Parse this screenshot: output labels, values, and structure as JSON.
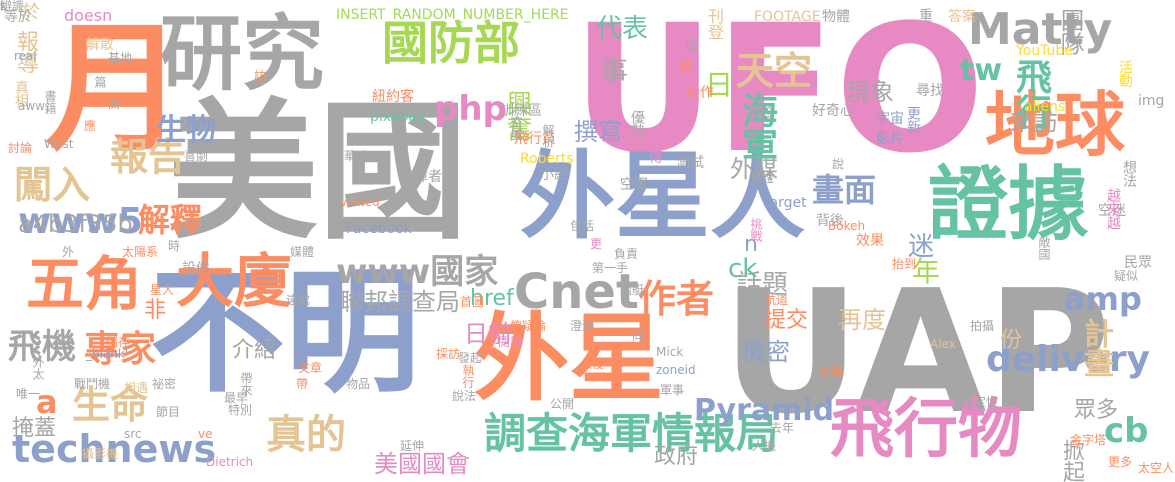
{
  "palette": {
    "gray": "#a6a6a6",
    "pink": "#e78ac3",
    "blue": "#8da0cb",
    "orange": "#fc8d62",
    "green": "#66c2a5",
    "lime": "#a6d854",
    "tan": "#e5c494",
    "yellow": "#ffd92f"
  },
  "words": [
    {
      "text": "UFO",
      "color": "pink"
    },
    {
      "text": "美國",
      "color": "gray"
    },
    {
      "text": "UAP",
      "color": "gray"
    },
    {
      "text": "外星人",
      "color": "blue"
    },
    {
      "text": "不明",
      "color": "blue"
    },
    {
      "text": "月",
      "color": "orange"
    },
    {
      "text": "研究",
      "color": "gray"
    },
    {
      "text": "證據",
      "color": "green"
    },
    {
      "text": "外星",
      "color": "orange"
    },
    {
      "text": "地球",
      "color": "orange"
    },
    {
      "text": "飛行物",
      "color": "pink"
    },
    {
      "text": "大廈",
      "color": "orange"
    },
    {
      "text": "五角",
      "color": "orange"
    },
    {
      "text": "國防部",
      "color": "lime"
    },
    {
      "text": "Cnet",
      "color": "gray"
    },
    {
      "text": "闖入",
      "color": "tan"
    },
    {
      "text": "報告",
      "color": "tan"
    },
    {
      "text": "調查海軍情報局",
      "color": "green"
    },
    {
      "text": "technews",
      "color": "blue"
    },
    {
      "text": "專家",
      "color": "orange"
    },
    {
      "text": "生命",
      "color": "tan"
    },
    {
      "text": "真的",
      "color": "tan"
    },
    {
      "text": "www國家",
      "color": "gray"
    },
    {
      "text": "Matty",
      "color": "gray"
    },
    {
      "text": "php",
      "color": "pink"
    },
    {
      "text": "天空",
      "color": "tan"
    },
    {
      "text": "飛行",
      "color": "green"
    },
    {
      "text": "海軍",
      "color": "green"
    },
    {
      "text": "delivery",
      "color": "blue"
    },
    {
      "text": "作者",
      "color": "orange"
    },
    {
      "text": "www5",
      "color": "blue"
    },
    {
      "text": "飛機",
      "color": "gray"
    },
    {
      "text": "解釋",
      "color": "orange"
    },
    {
      "text": "生物",
      "color": "blue"
    },
    {
      "text": "畫面",
      "color": "blue"
    },
    {
      "text": "amp",
      "color": "blue"
    },
    {
      "text": "計畫",
      "color": "tan"
    },
    {
      "text": "Pyramid",
      "color": "blue"
    },
    {
      "text": "cb",
      "color": "green"
    },
    {
      "text": "代表",
      "color": "green"
    },
    {
      "text": "事",
      "color": "gray"
    },
    {
      "text": "日",
      "color": "lime"
    },
    {
      "text": "tw",
      "color": "green"
    },
    {
      "text": "興奮",
      "color": "lime"
    },
    {
      "text": "撰寫",
      "color": "blue"
    },
    {
      "text": "聯邦調查局",
      "color": "gray"
    },
    {
      "text": "a4b3f35b",
      "color": "gray"
    },
    {
      "text": "外媒",
      "color": "gray"
    },
    {
      "text": "年",
      "color": "lime"
    },
    {
      "text": "話題",
      "color": "gray"
    },
    {
      "text": "現象",
      "color": "gray"
    },
    {
      "text": "來訪",
      "color": "gray"
    },
    {
      "text": "團隊",
      "color": "gray"
    },
    {
      "text": "迷",
      "color": "blue"
    },
    {
      "text": "再度",
      "color": "tan"
    },
    {
      "text": "日前",
      "color": "pink"
    },
    {
      "text": "提交",
      "color": "orange"
    },
    {
      "text": "機密",
      "color": "blue"
    },
    {
      "text": "美國國會",
      "color": "pink"
    },
    {
      "text": "政府",
      "color": "gray"
    },
    {
      "text": "掀起",
      "color": "gray"
    },
    {
      "text": "眾多",
      "color": "gray"
    },
    {
      "text": "份",
      "color": "tan"
    },
    {
      "text": "掩蓋",
      "color": "gray"
    },
    {
      "text": "介紹",
      "color": "gray"
    },
    {
      "text": "a",
      "color": "orange"
    },
    {
      "text": "n",
      "color": "blue"
    },
    {
      "text": "ck",
      "color": "green"
    },
    {
      "text": "href",
      "color": "green"
    },
    {
      "text": "非",
      "color": "orange"
    },
    {
      "text": "報導",
      "color": "tan"
    },
    {
      "text": "於",
      "color": "tan"
    },
    {
      "text": "doesn",
      "color": "pink"
    },
    {
      "text": "INSERT_RANDOM_NUMBER_HERE",
      "color": "lime"
    },
    {
      "text": "刊登",
      "color": "tan"
    },
    {
      "text": "FOOTAGE",
      "color": "tan"
    },
    {
      "text": "物體",
      "color": "gray"
    },
    {
      "text": "重",
      "color": "gray"
    },
    {
      "text": "答案",
      "color": "tan"
    },
    {
      "text": "等於",
      "color": "gray"
    },
    {
      "text": "真相",
      "color": "tan"
    },
    {
      "text": "解散",
      "color": "tan"
    },
    {
      "text": "紐約客",
      "color": "orange"
    },
    {
      "text": "訓練區",
      "color": "gray"
    },
    {
      "text": "炒作",
      "color": "orange"
    },
    {
      "text": "顆粒",
      "color": "gray"
    },
    {
      "text": "好奇心",
      "color": "gray"
    },
    {
      "text": "尋找",
      "color": "gray"
    },
    {
      "text": "aliens",
      "color": "yellow"
    },
    {
      "text": "img",
      "color": "gray"
    },
    {
      "text": "更新",
      "color": "blue"
    },
    {
      "text": "影片",
      "color": "blue"
    },
    {
      "text": "宇宙",
      "color": "blue"
    },
    {
      "text": "YouTube",
      "color": "yellow"
    },
    {
      "text": "活動",
      "color": "yellow"
    },
    {
      "text": "pixabay",
      "color": "green"
    },
    {
      "text": "飛行員",
      "color": "orange"
    },
    {
      "text": "優勢",
      "color": "gray"
    },
    {
      "text": "盛傳",
      "color": "pink"
    },
    {
      "text": "測試",
      "color": "gray"
    },
    {
      "text": "Roberts",
      "color": "yellow"
    },
    {
      "text": "身障者",
      "color": "gray"
    },
    {
      "text": "小組",
      "color": "gray"
    },
    {
      "text": "空軍",
      "color": "gray"
    },
    {
      "text": "visited",
      "color": "orange"
    },
    {
      "text": "target",
      "color": "blue"
    },
    {
      "text": "挑戰",
      "color": "pink"
    },
    {
      "text": "背後",
      "color": "gray"
    },
    {
      "text": "Bokeh",
      "color": "orange"
    },
    {
      "text": "效果",
      "color": "orange"
    },
    {
      "text": "抬到",
      "color": "orange"
    },
    {
      "text": "敵國",
      "color": "gray"
    },
    {
      "text": "空迷",
      "color": "gray"
    },
    {
      "text": "越來越",
      "color": "pink"
    },
    {
      "text": "想法",
      "color": "gray"
    },
    {
      "text": "疑似",
      "color": "gray"
    },
    {
      "text": "民眾",
      "color": "gray"
    },
    {
      "text": "時",
      "color": "gray"
    },
    {
      "text": "Facebook",
      "color": "blue"
    },
    {
      "text": "媒體",
      "color": "gray"
    },
    {
      "text": "設備",
      "color": "gray"
    },
    {
      "text": "外",
      "color": "gray"
    },
    {
      "text": "太陽系",
      "color": "orange"
    },
    {
      "text": "星人",
      "color": "orange"
    },
    {
      "text": "遠處",
      "color": "gray"
    },
    {
      "text": "首圖",
      "color": "orange"
    },
    {
      "text": "負責",
      "color": "gray"
    },
    {
      "text": "第一手",
      "color": "gray"
    },
    {
      "text": "艦艇",
      "color": "gray"
    },
    {
      "text": "航道",
      "color": "orange"
    },
    {
      "text": "看待",
      "color": "gray"
    },
    {
      "text": "拍攝",
      "color": "gray"
    },
    {
      "text": "Alex",
      "color": "tan"
    },
    {
      "text": "分鐘",
      "color": "gray"
    },
    {
      "text": "來源",
      "color": "orange"
    },
    {
      "text": "成立",
      "color": "gray"
    },
    {
      "text": "播出",
      "color": "gray"
    },
    {
      "text": "決定性",
      "color": "gray"
    },
    {
      "text": "金字塔",
      "color": "orange"
    },
    {
      "text": "更多",
      "color": "orange"
    },
    {
      "text": "太空人",
      "color": "orange"
    },
    {
      "text": "去年",
      "color": "gray"
    },
    {
      "text": "人機",
      "color": "gray"
    },
    {
      "text": "一同",
      "color": "gray"
    },
    {
      "text": "Mick",
      "color": "gray"
    },
    {
      "text": "zoneid",
      "color": "blue"
    },
    {
      "text": "軍事",
      "color": "gray"
    },
    {
      "text": "澄清",
      "color": "gray"
    },
    {
      "text": "懷疑論",
      "color": "orange"
    },
    {
      "text": "閱讀",
      "color": "pink"
    },
    {
      "text": "入侵",
      "color": "orange"
    },
    {
      "text": "採訪",
      "color": "orange"
    },
    {
      "text": "發起",
      "color": "gray"
    },
    {
      "text": "說法",
      "color": "gray"
    },
    {
      "text": "公開",
      "color": "gray"
    },
    {
      "text": "執行",
      "color": "orange"
    },
    {
      "text": "最早",
      "color": "gray"
    },
    {
      "text": "特別",
      "color": "gray"
    },
    {
      "text": "帶",
      "color": "orange"
    },
    {
      "text": "文章",
      "color": "orange"
    },
    {
      "text": "物品",
      "color": "gray"
    },
    {
      "text": "節目",
      "color": "gray"
    },
    {
      "text": "src",
      "color": "gray"
    },
    {
      "text": "ve",
      "color": "orange"
    },
    {
      "text": "Dietrich",
      "color": "pink"
    },
    {
      "text": "攝影機",
      "color": "tan"
    },
    {
      "text": "祕密",
      "color": "gray"
    },
    {
      "text": "戰鬥機",
      "color": "gray"
    },
    {
      "text": "相遇",
      "color": "tan"
    },
    {
      "text": "儲存",
      "color": "orange"
    },
    {
      "text": "_blank'",
      "color": "blue"
    },
    {
      "text": "唯一",
      "color": "gray"
    },
    {
      "text": "外太",
      "color": "gray"
    },
    {
      "text": "帶來",
      "color": "gray"
    },
    {
      "text": "延伸",
      "color": "gray"
    },
    {
      "text": "訪",
      "color": "orange"
    },
    {
      "text": "低",
      "color": "orange"
    },
    {
      "text": "區",
      "color": "gray"
    },
    {
      "text": "空域",
      "color": "gray"
    },
    {
      "text": "基地",
      "color": "gray"
    },
    {
      "text": "real",
      "color": "blue"
    },
    {
      "text": "篇",
      "color": "gray"
    },
    {
      "text": "書籍",
      "color": "gray"
    },
    {
      "text": "aww",
      "color": "gray"
    },
    {
      "text": "應",
      "color": "orange"
    },
    {
      "text": "高",
      "color": "gray"
    },
    {
      "text": "討論",
      "color": "orange"
    },
    {
      "text": "West",
      "color": "gray"
    },
    {
      "text": "喜劇",
      "color": "gray"
    },
    {
      "text": "華達",
      "color": "gray"
    },
    {
      "text": "解析",
      "color": "gray"
    },
    {
      "text": "見證",
      "color": "gray"
    },
    {
      "text": "包括",
      "color": "gray"
    },
    {
      "text": "說",
      "color": "gray"
    },
    {
      "text": "更",
      "color": "pink"
    },
    {
      "text": "辨識",
      "color": "gray"
    },
    {
      "text": "s",
      "color": "gray"
    },
    {
      "text": "t",
      "color": "gray"
    }
  ]
}
